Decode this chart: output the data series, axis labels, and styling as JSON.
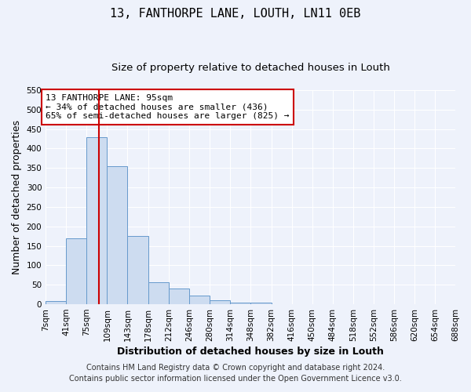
{
  "title": "13, FANTHORPE LANE, LOUTH, LN11 0EB",
  "subtitle": "Size of property relative to detached houses in Louth",
  "xlabel": "Distribution of detached houses by size in Louth",
  "ylabel": "Number of detached properties",
  "bin_edges": [
    7,
    41,
    75,
    109,
    143,
    178,
    212,
    246,
    280,
    314,
    348,
    382,
    416,
    450,
    484,
    518,
    552,
    586,
    620,
    654,
    688
  ],
  "bar_heights": [
    8,
    170,
    430,
    355,
    175,
    57,
    40,
    22,
    10,
    5,
    5,
    1,
    0,
    0,
    1,
    0,
    0,
    0,
    0,
    1
  ],
  "bar_color": "#cddcf0",
  "bar_edge_color": "#6699cc",
  "bar_edge_width": 0.7,
  "red_line_x": 95,
  "red_line_color": "#cc0000",
  "ylim": [
    0,
    550
  ],
  "yticks": [
    0,
    50,
    100,
    150,
    200,
    250,
    300,
    350,
    400,
    450,
    500,
    550
  ],
  "annotation_text": "13 FANTHORPE LANE: 95sqm\n← 34% of detached houses are smaller (436)\n65% of semi-detached houses are larger (825) →",
  "annotation_box_color": "#ffffff",
  "annotation_box_edge": "#cc0000",
  "footer_line1": "Contains HM Land Registry data © Crown copyright and database right 2024.",
  "footer_line2": "Contains public sector information licensed under the Open Government Licence v3.0.",
  "background_color": "#eef2fb",
  "grid_color": "#ffffff",
  "title_fontsize": 11,
  "subtitle_fontsize": 9.5,
  "axis_label_fontsize": 9,
  "tick_fontsize": 7.5,
  "annotation_fontsize": 8,
  "footer_fontsize": 7
}
